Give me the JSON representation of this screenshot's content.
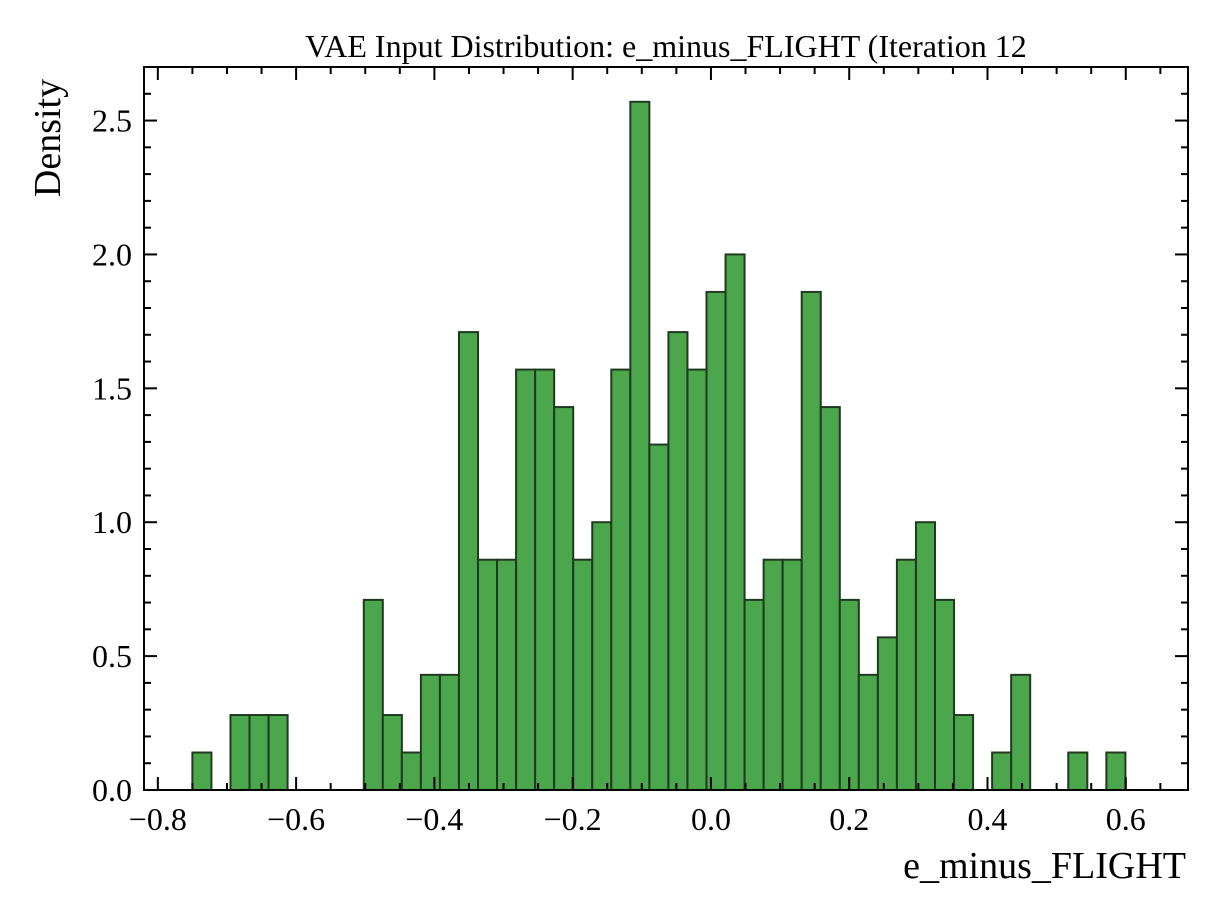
{
  "chart_data": {
    "type": "bar",
    "title": "VAE Input Distribution: e_minus_FLIGHT (Iteration 12",
    "xlabel": "e_minus_FLIGHT",
    "ylabel": "Density",
    "xlim": [
      -0.82,
      0.69
    ],
    "ylim": [
      0.0,
      2.7
    ],
    "grid": false,
    "bar_color": "#4ca64c",
    "edge_color": "#1f3a1f",
    "x_ticks": [
      -0.8,
      -0.6,
      -0.4,
      -0.2,
      0.0,
      0.2,
      0.4,
      0.6
    ],
    "x_tick_labels": [
      "−0.8",
      "−0.6",
      "−0.4",
      "−0.2",
      "0.0",
      "0.2",
      "0.4",
      "0.6"
    ],
    "x_minor_step": 0.05,
    "y_ticks": [
      0.0,
      0.5,
      1.0,
      1.5,
      2.0,
      2.5
    ],
    "y_tick_labels": [
      "0.0",
      "0.5",
      "1.0",
      "1.5",
      "2.0",
      "2.5"
    ],
    "y_minor_step": 0.1,
    "bins": {
      "start": -0.75,
      "width": 0.02754,
      "values": [
        0.14,
        0,
        0.28,
        0.28,
        0.28,
        0,
        0,
        0,
        0,
        0.71,
        0.28,
        0.14,
        0.43,
        0.43,
        1.71,
        0.86,
        0.86,
        1.57,
        1.57,
        1.43,
        0.86,
        1.0,
        1.57,
        2.57,
        1.29,
        1.71,
        1.57,
        1.86,
        2.0,
        0.71,
        0.86,
        0.86,
        1.86,
        1.43,
        0.71,
        0.43,
        0.57,
        0.86,
        1.0,
        0.71,
        0.28,
        0,
        0.14,
        0.43,
        0,
        0,
        0.14,
        0,
        0.14
      ]
    }
  }
}
